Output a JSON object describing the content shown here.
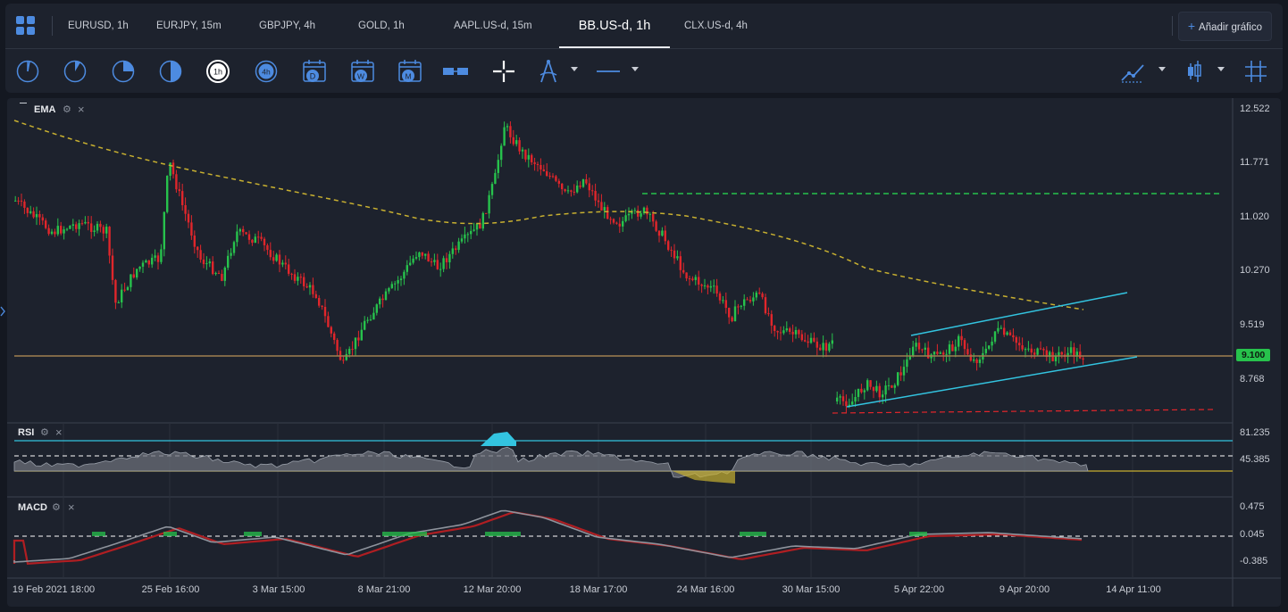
{
  "tabs": [
    {
      "label": "EURUSD, 1h"
    },
    {
      "label": "EURJPY, 15m"
    },
    {
      "label": "GBPJPY, 4h"
    },
    {
      "label": "GOLD, 1h"
    },
    {
      "label": "AAPL.US-d, 15m"
    },
    {
      "label": "BB.US-d, 1h",
      "active": true
    },
    {
      "label": "CLX.US-d, 4h"
    }
  ],
  "add_chart_label": "Añadir gráfico",
  "toolbar": {
    "timeframe_buttons": [
      {
        "icon": "clock-1m-icon"
      },
      {
        "icon": "clock-5m-icon"
      },
      {
        "icon": "clock-15m-icon"
      },
      {
        "icon": "clock-30m-icon"
      },
      {
        "icon": "clock-1h-icon",
        "label": "1h",
        "active": true
      },
      {
        "icon": "clock-4h-icon",
        "label": "4h"
      },
      {
        "icon": "calendar-day-icon",
        "label": "D"
      },
      {
        "icon": "calendar-week-icon",
        "label": "W"
      },
      {
        "icon": "calendar-month-icon",
        "label": "M"
      }
    ],
    "tools": [
      "chart-scale-icon",
      "crosshair-icon",
      "drawing-tools-icon",
      "line-style-icon"
    ],
    "right_tools": [
      "chart-type-line-icon",
      "candlestick-icon",
      "grid-icon"
    ]
  },
  "panels": {
    "main": {
      "label": "EMA"
    },
    "rsi": {
      "label": "RSI"
    },
    "macd": {
      "label": "MACD"
    }
  },
  "price_axis": [
    "12.522",
    "11.771",
    "11.020",
    "10.270",
    "9.519",
    "8.768"
  ],
  "current_price": "9.100",
  "rsi_axis": [
    "81.235",
    "45.385"
  ],
  "macd_axis": [
    "0.475",
    "0.045",
    "-0.385"
  ],
  "time_axis": [
    "19 Feb 2021 18:00",
    "25 Feb 16:00",
    "3 Mar 15:00",
    "8 Mar 21:00",
    "12 Mar 20:00",
    "18 Mar 17:00",
    "24 Mar 16:00",
    "30 Mar 15:00",
    "5 Apr 22:00",
    "9 Apr 20:00",
    "14 Apr 11:00"
  ],
  "colors": {
    "up": "#27c24c",
    "down": "#e0262b",
    "ema": "#c8b030",
    "accent": "#4d8be0",
    "channel": "#33c4e0"
  }
}
